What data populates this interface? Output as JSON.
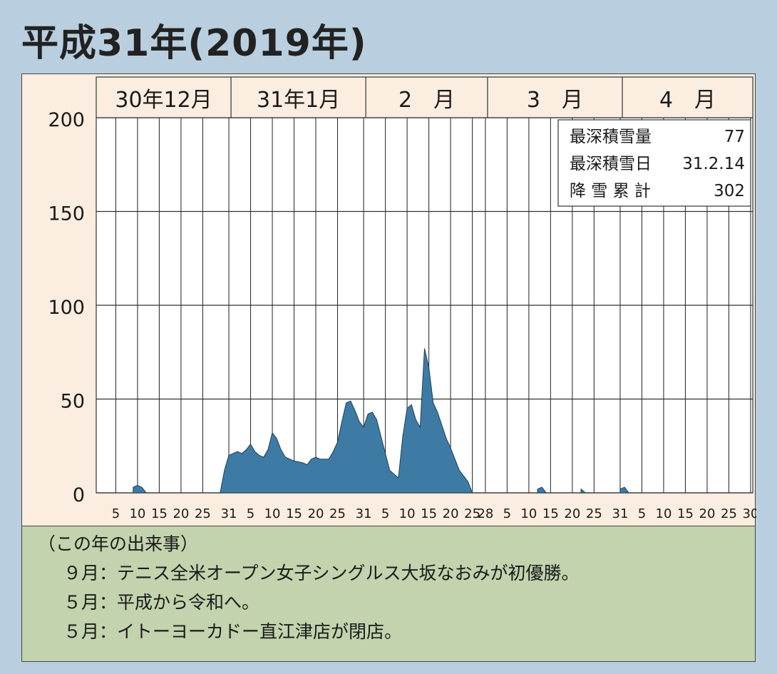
{
  "title": "平成31年(2019年)",
  "chart_data": {
    "type": "area",
    "ylim": [
      0,
      200
    ],
    "yticks": [
      0,
      50,
      100,
      150,
      200
    ],
    "months": [
      {
        "label": "30年12月",
        "days": 31
      },
      {
        "label": "31年1月",
        "days": 31
      },
      {
        "label": "2　月",
        "days": 28
      },
      {
        "label": "3　月",
        "days": 31
      },
      {
        "label": "4　月",
        "days": 30
      }
    ],
    "xticks": [
      {
        "m": 0,
        "d": 5,
        "label": "5"
      },
      {
        "m": 0,
        "d": 10,
        "label": "10"
      },
      {
        "m": 0,
        "d": 15,
        "label": "15"
      },
      {
        "m": 0,
        "d": 20,
        "label": "20"
      },
      {
        "m": 0,
        "d": 25,
        "label": "25"
      },
      {
        "m": 0,
        "d": 31,
        "label": "31"
      },
      {
        "m": 1,
        "d": 5,
        "label": "5"
      },
      {
        "m": 1,
        "d": 10,
        "label": "10"
      },
      {
        "m": 1,
        "d": 15,
        "label": "15"
      },
      {
        "m": 1,
        "d": 20,
        "label": "20"
      },
      {
        "m": 1,
        "d": 25,
        "label": "25"
      },
      {
        "m": 1,
        "d": 31,
        "label": "31"
      },
      {
        "m": 2,
        "d": 5,
        "label": "5"
      },
      {
        "m": 2,
        "d": 10,
        "label": "10"
      },
      {
        "m": 2,
        "d": 15,
        "label": "15"
      },
      {
        "m": 2,
        "d": 20,
        "label": "20"
      },
      {
        "m": 2,
        "d": 25,
        "label": "25"
      },
      {
        "m": 2,
        "d": 28,
        "label": "28"
      },
      {
        "m": 3,
        "d": 5,
        "label": "5"
      },
      {
        "m": 3,
        "d": 10,
        "label": "10"
      },
      {
        "m": 3,
        "d": 15,
        "label": "15"
      },
      {
        "m": 3,
        "d": 20,
        "label": "20"
      },
      {
        "m": 3,
        "d": 25,
        "label": "25"
      },
      {
        "m": 3,
        "d": 31,
        "label": "31"
      },
      {
        "m": 4,
        "d": 5,
        "label": "5"
      },
      {
        "m": 4,
        "d": 10,
        "label": "10"
      },
      {
        "m": 4,
        "d": 15,
        "label": "15"
      },
      {
        "m": 4,
        "d": 20,
        "label": "20"
      },
      {
        "m": 4,
        "d": 25,
        "label": "25"
      },
      {
        "m": 4,
        "d": 30,
        "label": "30"
      }
    ],
    "series": [
      {
        "fill": "#3d7ba5",
        "points": [
          {
            "m": 0,
            "d": 29,
            "v": 0
          },
          {
            "m": 0,
            "d": 30,
            "v": 12
          },
          {
            "m": 0,
            "d": 31,
            "v": 20
          },
          {
            "m": 1,
            "d": 2,
            "v": 22
          },
          {
            "m": 1,
            "d": 3,
            "v": 21
          },
          {
            "m": 1,
            "d": 4,
            "v": 23
          },
          {
            "m": 1,
            "d": 5,
            "v": 26
          },
          {
            "m": 1,
            "d": 6,
            "v": 22
          },
          {
            "m": 1,
            "d": 7,
            "v": 20
          },
          {
            "m": 1,
            "d": 8,
            "v": 19
          },
          {
            "m": 1,
            "d": 9,
            "v": 23
          },
          {
            "m": 1,
            "d": 10,
            "v": 32
          },
          {
            "m": 1,
            "d": 11,
            "v": 29
          },
          {
            "m": 1,
            "d": 12,
            "v": 23
          },
          {
            "m": 1,
            "d": 13,
            "v": 19
          },
          {
            "m": 1,
            "d": 15,
            "v": 17
          },
          {
            "m": 1,
            "d": 17,
            "v": 16
          },
          {
            "m": 1,
            "d": 18,
            "v": 15
          },
          {
            "m": 1,
            "d": 19,
            "v": 18
          },
          {
            "m": 1,
            "d": 20,
            "v": 19
          },
          {
            "m": 1,
            "d": 21,
            "v": 18
          },
          {
            "m": 1,
            "d": 23,
            "v": 18
          },
          {
            "m": 1,
            "d": 24,
            "v": 22
          },
          {
            "m": 1,
            "d": 25,
            "v": 27
          },
          {
            "m": 1,
            "d": 26,
            "v": 38
          },
          {
            "m": 1,
            "d": 27,
            "v": 48
          },
          {
            "m": 1,
            "d": 28,
            "v": 49
          },
          {
            "m": 1,
            "d": 29,
            "v": 44
          },
          {
            "m": 1,
            "d": 30,
            "v": 38
          },
          {
            "m": 1,
            "d": 31,
            "v": 35
          },
          {
            "m": 2,
            "d": 1,
            "v": 42
          },
          {
            "m": 2,
            "d": 2,
            "v": 43
          },
          {
            "m": 2,
            "d": 3,
            "v": 39
          },
          {
            "m": 2,
            "d": 4,
            "v": 30
          },
          {
            "m": 2,
            "d": 5,
            "v": 21
          },
          {
            "m": 2,
            "d": 6,
            "v": 12
          },
          {
            "m": 2,
            "d": 7,
            "v": 10
          },
          {
            "m": 2,
            "d": 8,
            "v": 8
          },
          {
            "m": 2,
            "d": 9,
            "v": 30
          },
          {
            "m": 2,
            "d": 10,
            "v": 45
          },
          {
            "m": 2,
            "d": 11,
            "v": 47
          },
          {
            "m": 2,
            "d": 12,
            "v": 39
          },
          {
            "m": 2,
            "d": 13,
            "v": 35
          },
          {
            "m": 2,
            "d": 14,
            "v": 77
          },
          {
            "m": 2,
            "d": 15,
            "v": 67
          },
          {
            "m": 2,
            "d": 16,
            "v": 48
          },
          {
            "m": 2,
            "d": 17,
            "v": 43
          },
          {
            "m": 2,
            "d": 18,
            "v": 36
          },
          {
            "m": 2,
            "d": 19,
            "v": 29
          },
          {
            "m": 2,
            "d": 20,
            "v": 24
          },
          {
            "m": 2,
            "d": 21,
            "v": 18
          },
          {
            "m": 2,
            "d": 22,
            "v": 12
          },
          {
            "m": 2,
            "d": 23,
            "v": 9
          },
          {
            "m": 2,
            "d": 24,
            "v": 6
          },
          {
            "m": 2,
            "d": 25,
            "v": 0
          }
        ]
      },
      {
        "fill": "#3d7ba5",
        "points": [
          {
            "m": 0,
            "d": 9,
            "v": 0
          },
          {
            "m": 0,
            "d": 9,
            "v": 3
          },
          {
            "m": 0,
            "d": 10,
            "v": 4
          },
          {
            "m": 0,
            "d": 11,
            "v": 3
          },
          {
            "m": 0,
            "d": 12,
            "v": 0
          }
        ]
      },
      {
        "fill": "#3d7ba5",
        "points": [
          {
            "m": 3,
            "d": 12,
            "v": 0
          },
          {
            "m": 3,
            "d": 12,
            "v": 2
          },
          {
            "m": 3,
            "d": 13,
            "v": 3
          },
          {
            "m": 3,
            "d": 14,
            "v": 0
          }
        ]
      },
      {
        "fill": "#3d7ba5",
        "points": [
          {
            "m": 3,
            "d": 22,
            "v": 0
          },
          {
            "m": 3,
            "d": 22,
            "v": 2
          },
          {
            "m": 3,
            "d": 23,
            "v": 0
          }
        ]
      },
      {
        "fill": "#3d7ba5",
        "points": [
          {
            "m": 3,
            "d": 31,
            "v": 0
          },
          {
            "m": 3,
            "d": 31,
            "v": 2
          },
          {
            "m": 4,
            "d": 1,
            "v": 3
          },
          {
            "m": 4,
            "d": 2,
            "v": 0
          }
        ]
      }
    ]
  },
  "summary": [
    {
      "label": "最深積雪量",
      "value": "77"
    },
    {
      "label": "最深積雪日",
      "value": "31.2.14"
    },
    {
      "label": "降 雪 累 計",
      "value": "302"
    }
  ],
  "events": {
    "heading": "（この年の出来事）",
    "items": [
      "９月：テニス全米オープン女子シングルス大坂なおみが初優勝。",
      "５月：平成から令和へ。",
      "５月：イトーヨーカドー直江津店が閉店。"
    ]
  }
}
